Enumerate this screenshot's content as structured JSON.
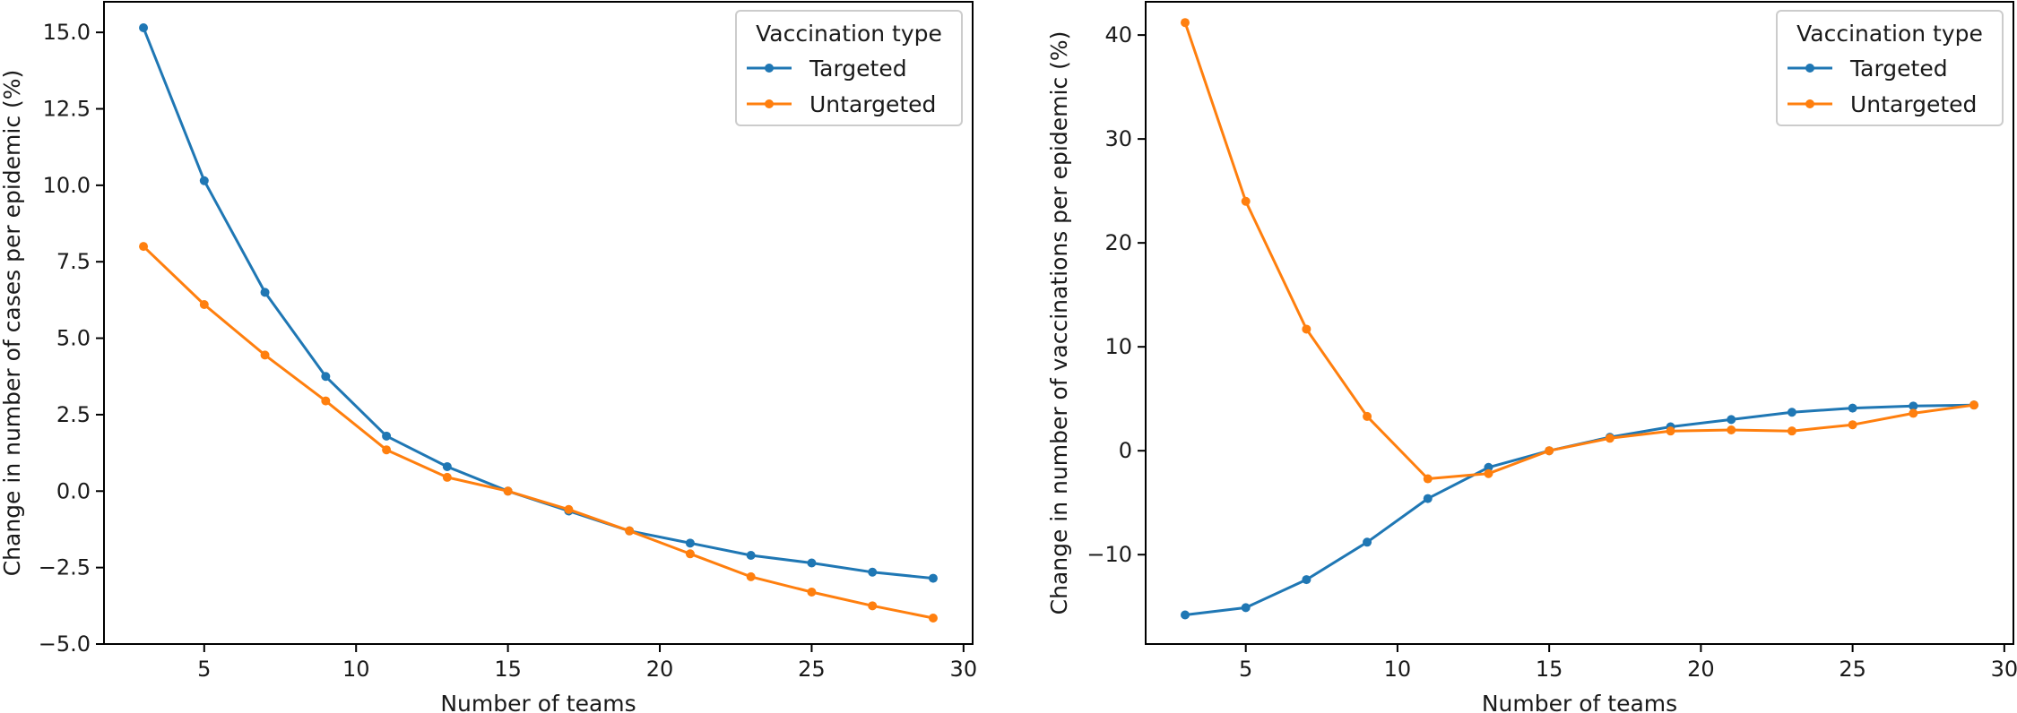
{
  "chart_data": [
    {
      "type": "line",
      "xlabel": "Number of teams",
      "ylabel": "Change in number of cases per epidemic (%)",
      "xlim": [
        1.7,
        30.3
      ],
      "ylim": [
        -5.0,
        16.0
      ],
      "xticks": [
        "5",
        "10",
        "15",
        "20",
        "25",
        "30"
      ],
      "yticks": [
        "15.0",
        "12.5",
        "10.0",
        "7.5",
        "5.0",
        "2.5",
        "0.0",
        "−2.5",
        "−5.0"
      ],
      "x": [
        3,
        5,
        7,
        9,
        11,
        13,
        15,
        17,
        19,
        21,
        23,
        25,
        27,
        29
      ],
      "legend_title": "Vaccination type",
      "legend_position": "top-right",
      "grid": false,
      "series": [
        {
          "name": "Targeted",
          "color": "#1f77b4",
          "values": [
            15.15,
            10.15,
            6.5,
            3.75,
            1.8,
            0.8,
            0.0,
            -0.65,
            -1.3,
            -1.7,
            -2.1,
            -2.35,
            -2.65,
            -2.85
          ]
        },
        {
          "name": "Untargeted",
          "color": "#ff7f0e",
          "values": [
            8.0,
            6.1,
            4.45,
            2.95,
            1.35,
            0.45,
            0.0,
            -0.6,
            -1.3,
            -2.05,
            -2.8,
            -3.3,
            -3.75,
            -4.15
          ]
        }
      ]
    },
    {
      "type": "line",
      "xlabel": "Number of teams",
      "ylabel": "Change in number of vaccinations per epidemic (%)",
      "xlim": [
        1.7,
        30.3
      ],
      "ylim": [
        -18.6,
        43.2
      ],
      "xticks": [
        "5",
        "10",
        "15",
        "20",
        "25",
        "30"
      ],
      "yticks": [
        "40",
        "30",
        "20",
        "10",
        "0",
        "−10"
      ],
      "x": [
        3,
        5,
        7,
        9,
        11,
        13,
        15,
        17,
        19,
        21,
        23,
        25,
        27,
        29
      ],
      "legend_title": "Vaccination type",
      "legend_position": "top-right",
      "grid": false,
      "series": [
        {
          "name": "Targeted",
          "color": "#1f77b4",
          "values": [
            -15.8,
            -15.1,
            -12.4,
            -8.8,
            -4.6,
            -1.6,
            0.0,
            1.3,
            2.3,
            3.0,
            3.7,
            4.1,
            4.3,
            4.4
          ]
        },
        {
          "name": "Untargeted",
          "color": "#ff7f0e",
          "values": [
            41.2,
            24.0,
            11.7,
            3.3,
            -2.7,
            -2.2,
            0.0,
            1.2,
            1.9,
            2.0,
            1.9,
            2.5,
            3.6,
            4.4
          ]
        }
      ]
    }
  ]
}
